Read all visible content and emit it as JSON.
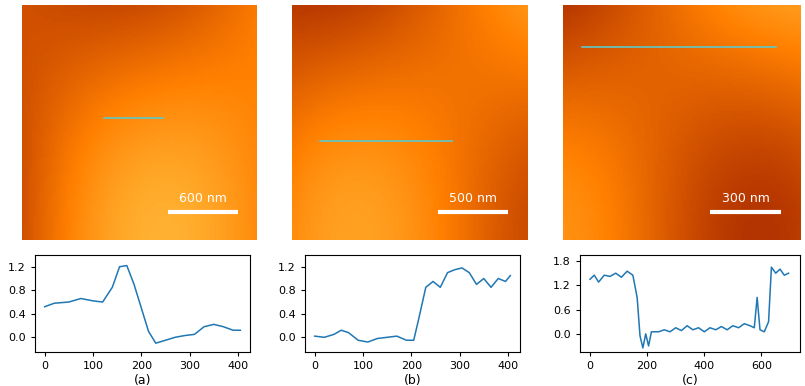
{
  "chart_data": [
    {
      "type": "line",
      "xlabel": "(a)",
      "color": "#1f77b4",
      "x": [
        0,
        20,
        50,
        75,
        100,
        120,
        140,
        155,
        170,
        185,
        200,
        215,
        230,
        250,
        270,
        290,
        310,
        330,
        350,
        370,
        390,
        405
      ],
      "values": [
        0.52,
        0.58,
        0.6,
        0.66,
        0.62,
        0.6,
        0.85,
        1.2,
        1.22,
        0.9,
        0.5,
        0.1,
        -0.1,
        -0.05,
        0.0,
        0.03,
        0.05,
        0.18,
        0.22,
        0.18,
        0.12,
        0.12
      ],
      "xlim": [
        -20,
        425
      ],
      "xticks": [
        0,
        100,
        200,
        300,
        400
      ],
      "ylim": [
        -0.25,
        1.4
      ],
      "yticks": [
        {
          "value": 0,
          "label": "0.0"
        },
        0.4,
        0.8,
        1.2
      ]
    },
    {
      "type": "line",
      "xlabel": "(b)",
      "color": "#1f77b4",
      "x": [
        0,
        20,
        40,
        55,
        70,
        90,
        110,
        130,
        150,
        170,
        190,
        205,
        215,
        230,
        245,
        260,
        275,
        290,
        305,
        320,
        335,
        350,
        365,
        380,
        395,
        405
      ],
      "values": [
        0.02,
        0.0,
        0.05,
        0.12,
        0.08,
        -0.05,
        -0.08,
        -0.02,
        0.0,
        0.02,
        -0.05,
        -0.05,
        0.3,
        0.85,
        0.95,
        0.85,
        1.1,
        1.15,
        1.18,
        1.1,
        0.9,
        1.0,
        0.85,
        1.0,
        0.95,
        1.05
      ],
      "xlim": [
        -20,
        425
      ],
      "xticks": [
        0,
        100,
        200,
        300,
        400
      ],
      "ylim": [
        -0.25,
        1.4
      ],
      "yticks": [
        {
          "value": 0,
          "label": "0.0"
        },
        0.4,
        0.8,
        1.2
      ]
    },
    {
      "type": "line",
      "xlabel": "(c)",
      "color": "#1f77b4",
      "x": [
        0,
        15,
        30,
        50,
        70,
        90,
        110,
        130,
        150,
        165,
        175,
        185,
        195,
        205,
        215,
        240,
        260,
        280,
        300,
        320,
        340,
        360,
        380,
        400,
        420,
        440,
        460,
        480,
        500,
        520,
        540,
        560,
        575,
        585,
        595,
        610,
        625,
        635,
        650,
        665,
        680,
        695
      ],
      "values": [
        1.35,
        1.45,
        1.28,
        1.45,
        1.42,
        1.5,
        1.4,
        1.55,
        1.45,
        0.9,
        -0.05,
        -0.35,
        0.0,
        -0.3,
        0.05,
        0.05,
        0.1,
        0.05,
        0.15,
        0.08,
        0.2,
        0.1,
        0.15,
        0.05,
        0.15,
        0.1,
        0.18,
        0.1,
        0.2,
        0.15,
        0.25,
        0.2,
        0.15,
        0.9,
        0.1,
        0.05,
        0.3,
        1.65,
        1.5,
        1.6,
        1.45,
        1.5
      ],
      "xlim": [
        -35,
        735
      ],
      "xticks": [
        0,
        200,
        400,
        600
      ],
      "ylim": [
        -0.45,
        1.95
      ],
      "yticks": [
        {
          "value": 0,
          "label": "0.0"
        },
        0.6,
        1.2,
        1.8
      ]
    }
  ],
  "images": [
    {
      "scale_bar": "600 nm"
    },
    {
      "scale_bar": "500 nm"
    },
    {
      "scale_bar": "300 nm"
    }
  ]
}
